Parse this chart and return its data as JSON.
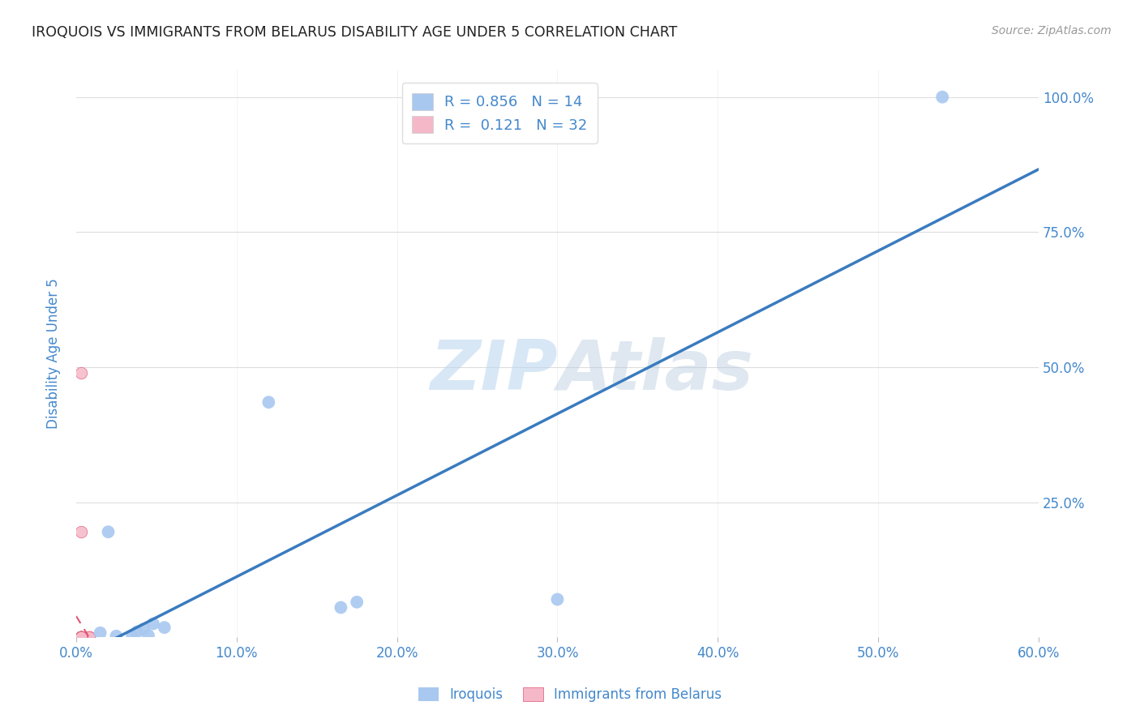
{
  "title": "IROQUOIS VS IMMIGRANTS FROM BELARUS DISABILITY AGE UNDER 5 CORRELATION CHART",
  "source": "Source: ZipAtlas.com",
  "ylabel": "Disability Age Under 5",
  "xlim": [
    0.0,
    0.6
  ],
  "ylim": [
    0.0,
    1.05
  ],
  "xtick_labels": [
    "0.0%",
    "10.0%",
    "20.0%",
    "30.0%",
    "40.0%",
    "50.0%",
    "60.0%"
  ],
  "xtick_vals": [
    0.0,
    0.1,
    0.2,
    0.3,
    0.4,
    0.5,
    0.6
  ],
  "ytick_labels": [
    "25.0%",
    "50.0%",
    "75.0%",
    "100.0%"
  ],
  "ytick_vals": [
    0.25,
    0.5,
    0.75,
    1.0
  ],
  "iroquois_R": 0.856,
  "iroquois_N": 14,
  "belarus_R": 0.121,
  "belarus_N": 32,
  "iroquois_color": "#a8c8f0",
  "iroquois_line_color": "#3a7bbf",
  "belarus_color": "#f5b8c8",
  "belarus_line_color": "#e05575",
  "watermark": "ZIPAtlas",
  "iroquois_x": [
    0.54,
    0.02,
    0.12,
    0.165,
    0.175,
    0.3,
    0.035,
    0.045,
    0.025,
    0.015,
    0.038,
    0.042,
    0.048,
    0.055
  ],
  "iroquois_y": [
    1.0,
    0.195,
    0.435,
    0.055,
    0.065,
    0.07,
    0.002,
    0.003,
    0.002,
    0.008,
    0.01,
    0.015,
    0.025,
    0.018
  ],
  "belarus_x": [
    0.003,
    0.003,
    0.003,
    0.003,
    0.003,
    0.003,
    0.003,
    0.003,
    0.003,
    0.003,
    0.003,
    0.003,
    0.008,
    0.008,
    0.008,
    0.008,
    0.003,
    0.003,
    0.003,
    0.003,
    0.003,
    0.003,
    0.003,
    0.003,
    0.003,
    0.003,
    0.003,
    0.003,
    0.003,
    0.003,
    0.003,
    0.003
  ],
  "belarus_y": [
    0.49,
    0.0,
    0.0,
    0.0,
    0.0,
    0.0,
    0.0,
    0.0,
    0.0,
    0.0,
    0.0,
    0.0,
    0.0,
    0.0,
    0.0,
    0.0,
    0.195,
    0.0,
    0.0,
    0.0,
    0.0,
    0.0,
    0.0,
    0.0,
    0.0,
    0.0,
    0.0,
    0.0,
    0.0,
    0.0,
    0.0,
    0.0
  ],
  "iroquois_marker_size": 130,
  "belarus_marker_size": 110,
  "grid_color": "#dddddd",
  "background_color": "#ffffff",
  "title_color": "#222222",
  "axis_label_color": "#4488cc",
  "tick_color": "#4488cc"
}
